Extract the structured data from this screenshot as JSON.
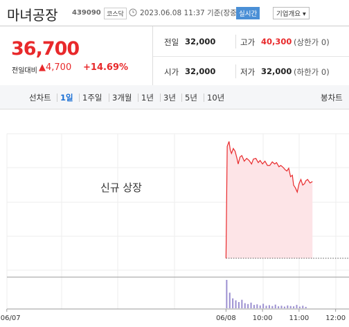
{
  "header": {
    "title": "마녀공장",
    "code": "439090",
    "market": "코스닥",
    "timestamp": "2023.06.08 11:37 기준(장중)",
    "realtime": "실시간",
    "company_info": "기업개요"
  },
  "quote": {
    "price": "36,700",
    "change_label": "전일대비",
    "change": "▲4,700",
    "change_pct": "+14.69%",
    "stats": [
      {
        "label": "전일",
        "value": "32,000"
      },
      {
        "label": "고가",
        "value": "40,300",
        "note": "(상한가 0)"
      },
      {
        "label": "시가",
        "value": "32,000"
      },
      {
        "label": "저가",
        "value": "32,000",
        "note": "(하한가 0)"
      }
    ]
  },
  "tabs": {
    "items": [
      "선차트",
      "1일",
      "1주일",
      "3개월",
      "1년",
      "3년",
      "5년",
      "10년"
    ],
    "selected": 1,
    "candle": "봉차트"
  },
  "chart_data": {
    "type": "line",
    "annotation": "신규 상장",
    "color": "#e8292b",
    "fill": "#fde4e7",
    "reference": 32000,
    "x": [
      0,
      2,
      5,
      7,
      9,
      12,
      15,
      18,
      20,
      23,
      26,
      30,
      34,
      38,
      42,
      45,
      49,
      53,
      56,
      60,
      64,
      68,
      72,
      76,
      80,
      83,
      87,
      90,
      94,
      97,
      100,
      103,
      106,
      109,
      111,
      114,
      117,
      120,
      123,
      126,
      129,
      131,
      134,
      138,
      142
    ],
    "values": [
      32000,
      39950,
      40300,
      39700,
      39450,
      39800,
      39600,
      39100,
      38700,
      39200,
      39300,
      38900,
      39100,
      38950,
      38700,
      39050,
      39100,
      38800,
      38950,
      38700,
      38900,
      38600,
      38600,
      38850,
      38700,
      38800,
      38500,
      38600,
      38450,
      38300,
      38200,
      38400,
      37800,
      37900,
      37200,
      37000,
      36700,
      37300,
      37600,
      37200,
      37300,
      37500,
      37600,
      37350,
      37450
    ],
    "ylim": [
      31000,
      41000
    ],
    "xlim": [
      -370,
      202
    ],
    "xticks": [
      {
        "value": -360,
        "label": "06/07"
      },
      {
        "value": 0,
        "label": "06/08"
      },
      {
        "value": 60,
        "label": "10:00"
      },
      {
        "value": 120,
        "label": "11:00"
      },
      {
        "value": 180,
        "label": "12:00"
      }
    ],
    "volume": {
      "color": "#9b8fd0",
      "ylim": [
        0,
        100
      ],
      "x": [
        0,
        5,
        10,
        15,
        20,
        25,
        30,
        35,
        40,
        45,
        50,
        55,
        60,
        65,
        70,
        75,
        80,
        85,
        90,
        95,
        100,
        105,
        110,
        115,
        120,
        125,
        130
      ],
      "values": [
        100,
        55,
        35,
        28,
        22,
        30,
        18,
        15,
        20,
        12,
        14,
        10,
        16,
        9,
        11,
        8,
        13,
        7,
        9,
        6,
        10,
        8,
        7,
        12,
        6,
        9,
        5
      ]
    }
  }
}
